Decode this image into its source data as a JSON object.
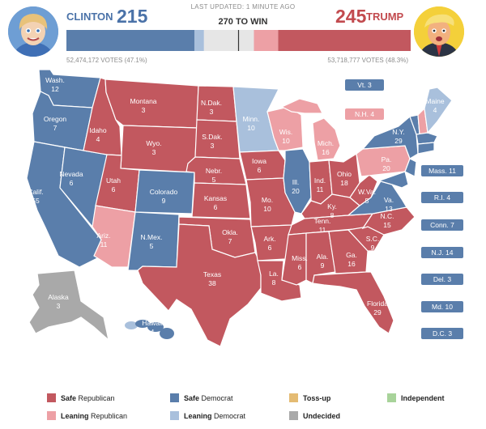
{
  "header": {
    "updated": "LAST UPDATED: 1 MINUTE AGO",
    "to_win": "270 TO WIN",
    "left": {
      "name": "CLINTON",
      "ev": "215",
      "votes": "52,474,172 VOTES (47.1%)",
      "color": "#5a7eab"
    },
    "right": {
      "name": "TRUMP",
      "ev": "245",
      "votes": "53,718,777 VOTES (48.3%)",
      "color": "#c2585f"
    }
  },
  "colors": {
    "safe_republican": "#c2585f",
    "leaning_republican": "#eda0a5",
    "safe_democrat": "#5a7eab",
    "leaning_democrat": "#a9c0dc",
    "tossup": "#e4bb73",
    "independent": "#a8d39a",
    "undecided": "#a9a9a9"
  },
  "bar": {
    "total": 538,
    "safe_democrat": 200,
    "leaning_democrat": 15,
    "leaning_republican": 38,
    "safe_republican": 207
  },
  "states": [
    {
      "name": "Wash.",
      "ev": "12"
    },
    {
      "name": "Oregon",
      "ev": "7"
    },
    {
      "name": "Calif.",
      "ev": "55"
    },
    {
      "name": "Nevada",
      "ev": "6"
    },
    {
      "name": "Idaho",
      "ev": "4"
    },
    {
      "name": "Montana",
      "ev": "3"
    },
    {
      "name": "Wyo.",
      "ev": "3"
    },
    {
      "name": "Utah",
      "ev": "6"
    },
    {
      "name": "Colorado",
      "ev": "9"
    },
    {
      "name": "Ariz.",
      "ev": "11"
    },
    {
      "name": "N.Mex.",
      "ev": "5"
    },
    {
      "name": "N.Dak.",
      "ev": "3"
    },
    {
      "name": "S.Dak.",
      "ev": "3"
    },
    {
      "name": "Nebr.",
      "ev": "5"
    },
    {
      "name": "Kansas",
      "ev": "6"
    },
    {
      "name": "Okla.",
      "ev": "7"
    },
    {
      "name": "Texas",
      "ev": "38"
    },
    {
      "name": "Minn.",
      "ev": "10"
    },
    {
      "name": "Iowa",
      "ev": "6"
    },
    {
      "name": "Mo.",
      "ev": "10"
    },
    {
      "name": "Ark.",
      "ev": "6"
    },
    {
      "name": "La.",
      "ev": "8"
    },
    {
      "name": "Wis.",
      "ev": "10"
    },
    {
      "name": "Ill.",
      "ev": "20"
    },
    {
      "name": "Mich.",
      "ev": "16"
    },
    {
      "name": "Ind.",
      "ev": "11"
    },
    {
      "name": "Ohio",
      "ev": "18"
    },
    {
      "name": "Ky.",
      "ev": "8"
    },
    {
      "name": "Tenn.",
      "ev": "11"
    },
    {
      "name": "Miss.",
      "ev": "6"
    },
    {
      "name": "Ala.",
      "ev": "9"
    },
    {
      "name": "Ga.",
      "ev": "16"
    },
    {
      "name": "Florida",
      "ev": "29"
    },
    {
      "name": "S.C.",
      "ev": "9"
    },
    {
      "name": "N.C.",
      "ev": "15"
    },
    {
      "name": "Va.",
      "ev": "13"
    },
    {
      "name": "W.Va.",
      "ev": "5"
    },
    {
      "name": "Pa.",
      "ev": "20"
    },
    {
      "name": "N.Y.",
      "ev": "29"
    },
    {
      "name": "Maine",
      "ev": "4"
    },
    {
      "name": "Alaska",
      "ev": "3"
    },
    {
      "name": "Hawaii",
      "ev": "4"
    }
  ],
  "small_states": [
    {
      "name": "Vt.",
      "ev": "3"
    },
    {
      "name": "N.H.",
      "ev": "4"
    },
    {
      "name": "Mass.",
      "ev": "11"
    },
    {
      "name": "R.I.",
      "ev": "4"
    },
    {
      "name": "Conn.",
      "ev": "7"
    },
    {
      "name": "N.J.",
      "ev": "14"
    },
    {
      "name": "Del.",
      "ev": "3"
    },
    {
      "name": "Md.",
      "ev": "10"
    },
    {
      "name": "D.C.",
      "ev": "3"
    }
  ],
  "legend": [
    {
      "bold": "Safe",
      "rest": "Republican",
      "color": "#c2585f"
    },
    {
      "bold": "Leaning",
      "rest": "Republican",
      "color": "#eda0a5"
    },
    {
      "bold": "Safe",
      "rest": "Democrat",
      "color": "#5a7eab"
    },
    {
      "bold": "Leaning",
      "rest": "Democrat",
      "color": "#a9c0dc"
    },
    {
      "bold": "Toss-up",
      "rest": "",
      "color": "#e4bb73"
    },
    {
      "bold": "Undecided",
      "rest": "",
      "color": "#a9a9a9"
    },
    {
      "bold": "Independent",
      "rest": "",
      "color": "#a8d39a"
    }
  ]
}
